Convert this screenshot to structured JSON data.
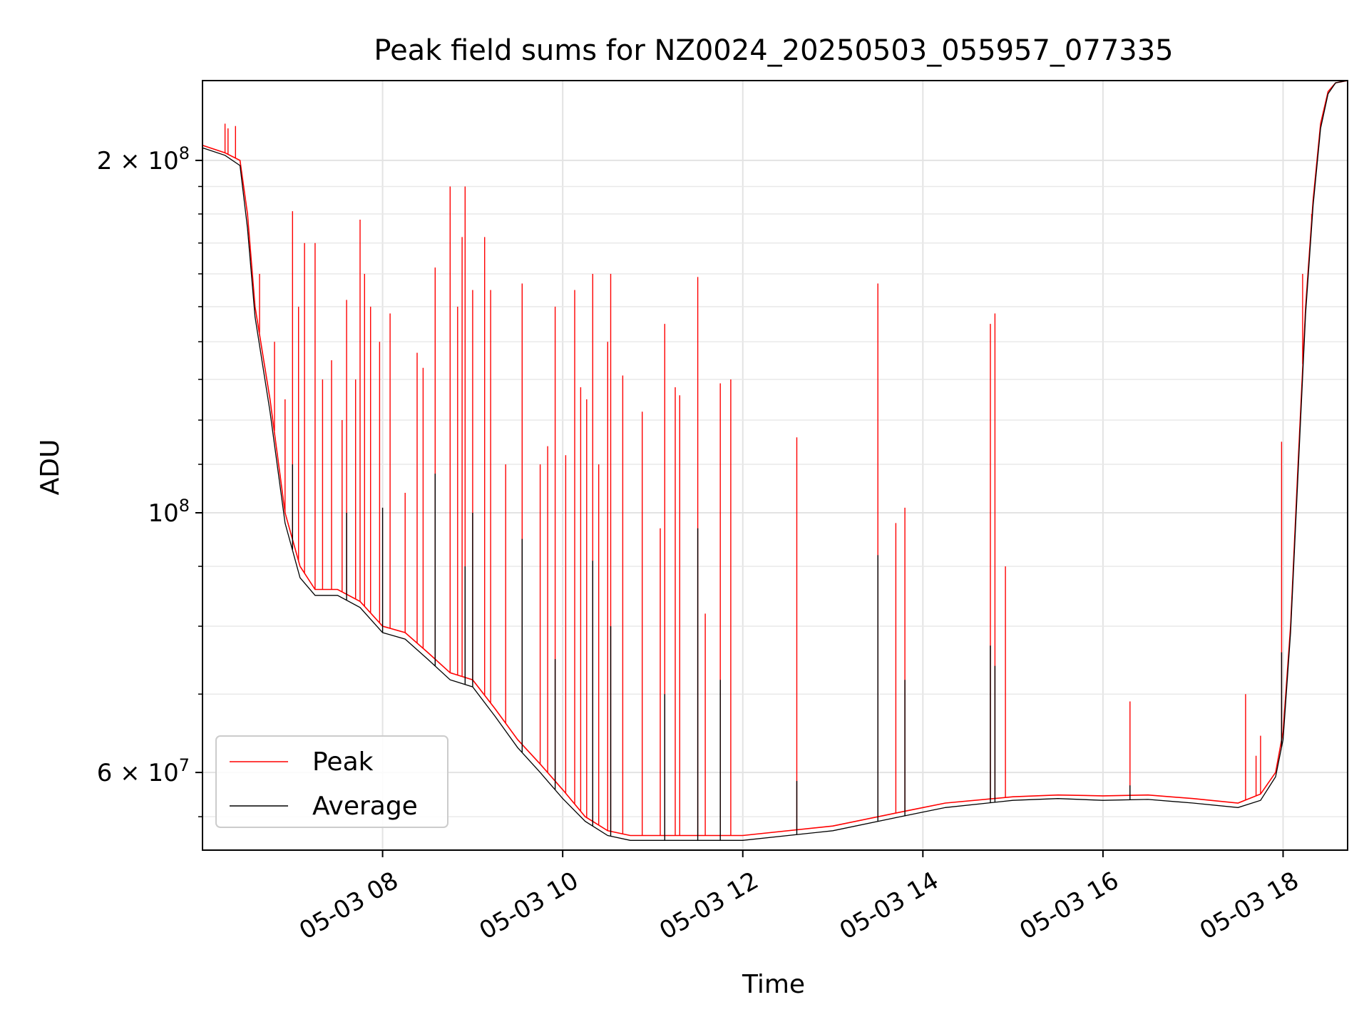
{
  "chart_data": {
    "type": "line",
    "title": "Peak field sums for NZ0024_20250503_055957_077335",
    "xlabel": "Time",
    "ylabel": "ADU",
    "yscale": "log",
    "xlim": [
      "2025-05-03 06:00",
      "2025-05-03 18:43"
    ],
    "ylim": [
      51500000,
      234000000
    ],
    "grid": true,
    "legend_position": "lower-left",
    "x_ticks": [
      {
        "value": "2025-05-03 08:00",
        "label": "05-03 08"
      },
      {
        "value": "2025-05-03 10:00",
        "label": "05-03 10"
      },
      {
        "value": "2025-05-03 12:00",
        "label": "05-03 12"
      },
      {
        "value": "2025-05-03 14:00",
        "label": "05-03 14"
      },
      {
        "value": "2025-05-03 16:00",
        "label": "05-03 16"
      },
      {
        "value": "2025-05-03 18:00",
        "label": "05-03 18"
      }
    ],
    "y_ticks": [
      {
        "value": 200000000,
        "mantissa": "2",
        "exponent": "8"
      },
      {
        "value": 100000000,
        "mantissa": "",
        "exponent": "8"
      },
      {
        "value": 60000000,
        "mantissa": "6",
        "exponent": "7"
      }
    ],
    "y_minor_ticks": [
      70000000,
      80000000,
      90000000,
      110000000,
      120000000,
      130000000,
      140000000,
      150000000,
      160000000,
      170000000,
      180000000,
      190000000,
      55000000
    ],
    "series": [
      {
        "name": "Peak",
        "color": "#ff0000",
        "baseline": [
          [
            "2025-05-03 06:00",
            206000000
          ],
          [
            "2025-05-03 06:15",
            203000000
          ],
          [
            "2025-05-03 06:25",
            200000000
          ],
          [
            "2025-05-03 06:30",
            180000000
          ],
          [
            "2025-05-03 06:35",
            150000000
          ],
          [
            "2025-05-03 06:45",
            125000000
          ],
          [
            "2025-05-03 06:55",
            100000000
          ],
          [
            "2025-05-03 07:05",
            90000000
          ],
          [
            "2025-05-03 07:15",
            86000000
          ],
          [
            "2025-05-03 07:30",
            86000000
          ],
          [
            "2025-05-03 07:45",
            84000000
          ],
          [
            "2025-05-03 08:00",
            80000000
          ],
          [
            "2025-05-03 08:15",
            79000000
          ],
          [
            "2025-05-03 08:30",
            76000000
          ],
          [
            "2025-05-03 08:45",
            73000000
          ],
          [
            "2025-05-03 09:00",
            72000000
          ],
          [
            "2025-05-03 09:15",
            68000000
          ],
          [
            "2025-05-03 09:30",
            64000000
          ],
          [
            "2025-05-03 09:45",
            61000000
          ],
          [
            "2025-05-03 10:00",
            58000000
          ],
          [
            "2025-05-03 10:15",
            55000000
          ],
          [
            "2025-05-03 10:30",
            53500000
          ],
          [
            "2025-05-03 10:45",
            53000000
          ],
          [
            "2025-05-03 11:00",
            53000000
          ],
          [
            "2025-05-03 12:00",
            53000000
          ],
          [
            "2025-05-03 13:00",
            54000000
          ],
          [
            "2025-05-03 13:45",
            55500000
          ],
          [
            "2025-05-03 14:15",
            56500000
          ],
          [
            "2025-05-03 15:00",
            57200000
          ],
          [
            "2025-05-03 15:30",
            57400000
          ],
          [
            "2025-05-03 16:00",
            57300000
          ],
          [
            "2025-05-03 16:30",
            57400000
          ],
          [
            "2025-05-03 17:00",
            57000000
          ],
          [
            "2025-05-03 17:30",
            56500000
          ],
          [
            "2025-05-03 17:45",
            57500000
          ],
          [
            "2025-05-03 17:55",
            60000000
          ],
          [
            "2025-05-03 18:00",
            65000000
          ],
          [
            "2025-05-03 18:05",
            80000000
          ],
          [
            "2025-05-03 18:10",
            110000000
          ],
          [
            "2025-05-03 18:15",
            150000000
          ],
          [
            "2025-05-03 18:20",
            185000000
          ],
          [
            "2025-05-03 18:25",
            215000000
          ],
          [
            "2025-05-03 18:30",
            229000000
          ],
          [
            "2025-05-03 18:35",
            233000000
          ],
          [
            "2025-05-03 18:43",
            234000000
          ]
        ],
        "spikes": [
          [
            "2025-05-03 06:15",
            215000000
          ],
          [
            "2025-05-03 06:17",
            213000000
          ],
          [
            "2025-05-03 06:22",
            214000000
          ],
          [
            "2025-05-03 06:38",
            160000000
          ],
          [
            "2025-05-03 06:48",
            140000000
          ],
          [
            "2025-05-03 06:55",
            125000000
          ],
          [
            "2025-05-03 07:00",
            181000000
          ],
          [
            "2025-05-03 07:04",
            150000000
          ],
          [
            "2025-05-03 07:08",
            170000000
          ],
          [
            "2025-05-03 07:15",
            170000000
          ],
          [
            "2025-05-03 07:20",
            130000000
          ],
          [
            "2025-05-03 07:26",
            135000000
          ],
          [
            "2025-05-03 07:33",
            120000000
          ],
          [
            "2025-05-03 07:36",
            152000000
          ],
          [
            "2025-05-03 07:42",
            130000000
          ],
          [
            "2025-05-03 07:45",
            178000000
          ],
          [
            "2025-05-03 07:48",
            160000000
          ],
          [
            "2025-05-03 07:52",
            150000000
          ],
          [
            "2025-05-03 07:58",
            140000000
          ],
          [
            "2025-05-03 08:05",
            148000000
          ],
          [
            "2025-05-03 08:15",
            104000000
          ],
          [
            "2025-05-03 08:23",
            137000000
          ],
          [
            "2025-05-03 08:27",
            133000000
          ],
          [
            "2025-05-03 08:35",
            162000000
          ],
          [
            "2025-05-03 08:45",
            190000000
          ],
          [
            "2025-05-03 08:50",
            150000000
          ],
          [
            "2025-05-03 08:53",
            172000000
          ],
          [
            "2025-05-03 08:55",
            190000000
          ],
          [
            "2025-05-03 09:00",
            155000000
          ],
          [
            "2025-05-03 09:08",
            172000000
          ],
          [
            "2025-05-03 09:12",
            155000000
          ],
          [
            "2025-05-03 09:22",
            110000000
          ],
          [
            "2025-05-03 09:33",
            157000000
          ],
          [
            "2025-05-03 09:45",
            110000000
          ],
          [
            "2025-05-03 09:50",
            114000000
          ],
          [
            "2025-05-03 09:55",
            150000000
          ],
          [
            "2025-05-03 10:02",
            112000000
          ],
          [
            "2025-05-03 10:08",
            155000000
          ],
          [
            "2025-05-03 10:12",
            128000000
          ],
          [
            "2025-05-03 10:16",
            125000000
          ],
          [
            "2025-05-03 10:20",
            160000000
          ],
          [
            "2025-05-03 10:24",
            110000000
          ],
          [
            "2025-05-03 10:30",
            140000000
          ],
          [
            "2025-05-03 10:32",
            160000000
          ],
          [
            "2025-05-03 10:40",
            131000000
          ],
          [
            "2025-05-03 10:53",
            122000000
          ],
          [
            "2025-05-03 11:05",
            97000000
          ],
          [
            "2025-05-03 11:08",
            145000000
          ],
          [
            "2025-05-03 11:15",
            128000000
          ],
          [
            "2025-05-03 11:18",
            126000000
          ],
          [
            "2025-05-03 11:30",
            159000000
          ],
          [
            "2025-05-03 11:35",
            82000000
          ],
          [
            "2025-05-03 11:45",
            129000000
          ],
          [
            "2025-05-03 11:52",
            130000000
          ],
          [
            "2025-05-03 12:36",
            116000000
          ],
          [
            "2025-05-03 13:30",
            157000000
          ],
          [
            "2025-05-03 13:42",
            98000000
          ],
          [
            "2025-05-03 13:48",
            101000000
          ],
          [
            "2025-05-03 14:45",
            145000000
          ],
          [
            "2025-05-03 14:48",
            148000000
          ],
          [
            "2025-05-03 14:55",
            90000000
          ],
          [
            "2025-05-03 16:18",
            69000000
          ],
          [
            "2025-05-03 17:35",
            70000000
          ],
          [
            "2025-05-03 17:42",
            62000000
          ],
          [
            "2025-05-03 17:45",
            64500000
          ],
          [
            "2025-05-03 17:59",
            115000000
          ],
          [
            "2025-05-03 18:13",
            160000000
          ],
          [
            "2025-05-03 18:19",
            180000000
          ]
        ]
      },
      {
        "name": "Average",
        "color": "#000000",
        "baseline": [
          [
            "2025-05-03 06:00",
            205000000
          ],
          [
            "2025-05-03 06:15",
            202000000
          ],
          [
            "2025-05-03 06:25",
            198000000
          ],
          [
            "2025-05-03 06:30",
            175000000
          ],
          [
            "2025-05-03 06:35",
            147000000
          ],
          [
            "2025-05-03 06:45",
            122000000
          ],
          [
            "2025-05-03 06:55",
            98000000
          ],
          [
            "2025-05-03 07:05",
            88000000
          ],
          [
            "2025-05-03 07:15",
            85000000
          ],
          [
            "2025-05-03 07:30",
            85000000
          ],
          [
            "2025-05-03 07:45",
            83000000
          ],
          [
            "2025-05-03 08:00",
            79000000
          ],
          [
            "2025-05-03 08:15",
            78000000
          ],
          [
            "2025-05-03 08:30",
            75000000
          ],
          [
            "2025-05-03 08:45",
            72000000
          ],
          [
            "2025-05-03 09:00",
            71000000
          ],
          [
            "2025-05-03 09:15",
            67000000
          ],
          [
            "2025-05-03 09:30",
            63000000
          ],
          [
            "2025-05-03 09:45",
            60000000
          ],
          [
            "2025-05-03 10:00",
            57000000
          ],
          [
            "2025-05-03 10:15",
            54500000
          ],
          [
            "2025-05-03 10:30",
            53000000
          ],
          [
            "2025-05-03 10:45",
            52500000
          ],
          [
            "2025-05-03 11:00",
            52500000
          ],
          [
            "2025-05-03 12:00",
            52500000
          ],
          [
            "2025-05-03 13:00",
            53500000
          ],
          [
            "2025-05-03 13:45",
            55000000
          ],
          [
            "2025-05-03 14:15",
            56000000
          ],
          [
            "2025-05-03 15:00",
            56800000
          ],
          [
            "2025-05-03 15:30",
            57000000
          ],
          [
            "2025-05-03 16:00",
            56800000
          ],
          [
            "2025-05-03 16:30",
            56900000
          ],
          [
            "2025-05-03 17:00",
            56500000
          ],
          [
            "2025-05-03 17:30",
            56000000
          ],
          [
            "2025-05-03 17:45",
            56800000
          ],
          [
            "2025-05-03 17:55",
            59500000
          ],
          [
            "2025-05-03 18:00",
            64000000
          ],
          [
            "2025-05-03 18:05",
            79000000
          ],
          [
            "2025-05-03 18:10",
            108000000
          ],
          [
            "2025-05-03 18:15",
            148000000
          ],
          [
            "2025-05-03 18:20",
            183000000
          ],
          [
            "2025-05-03 18:25",
            213000000
          ],
          [
            "2025-05-03 18:30",
            228000000
          ],
          [
            "2025-05-03 18:35",
            233000000
          ],
          [
            "2025-05-03 18:43",
            234000000
          ]
        ],
        "spikes": [
          [
            "2025-05-03 07:00",
            110000000
          ],
          [
            "2025-05-03 07:36",
            100000000
          ],
          [
            "2025-05-03 08:00",
            101000000
          ],
          [
            "2025-05-03 08:35",
            108000000
          ],
          [
            "2025-05-03 08:55",
            90000000
          ],
          [
            "2025-05-03 09:00",
            100000000
          ],
          [
            "2025-05-03 09:33",
            95000000
          ],
          [
            "2025-05-03 09:55",
            75000000
          ],
          [
            "2025-05-03 10:20",
            91000000
          ],
          [
            "2025-05-03 10:32",
            80000000
          ],
          [
            "2025-05-03 11:08",
            70000000
          ],
          [
            "2025-05-03 11:30",
            97000000
          ],
          [
            "2025-05-03 11:45",
            72000000
          ],
          [
            "2025-05-03 12:36",
            59000000
          ],
          [
            "2025-05-03 13:30",
            92000000
          ],
          [
            "2025-05-03 13:48",
            72000000
          ],
          [
            "2025-05-03 14:45",
            77000000
          ],
          [
            "2025-05-03 14:48",
            74000000
          ],
          [
            "2025-05-03 16:18",
            58500000
          ],
          [
            "2025-05-03 17:59",
            76000000
          ]
        ]
      }
    ]
  }
}
